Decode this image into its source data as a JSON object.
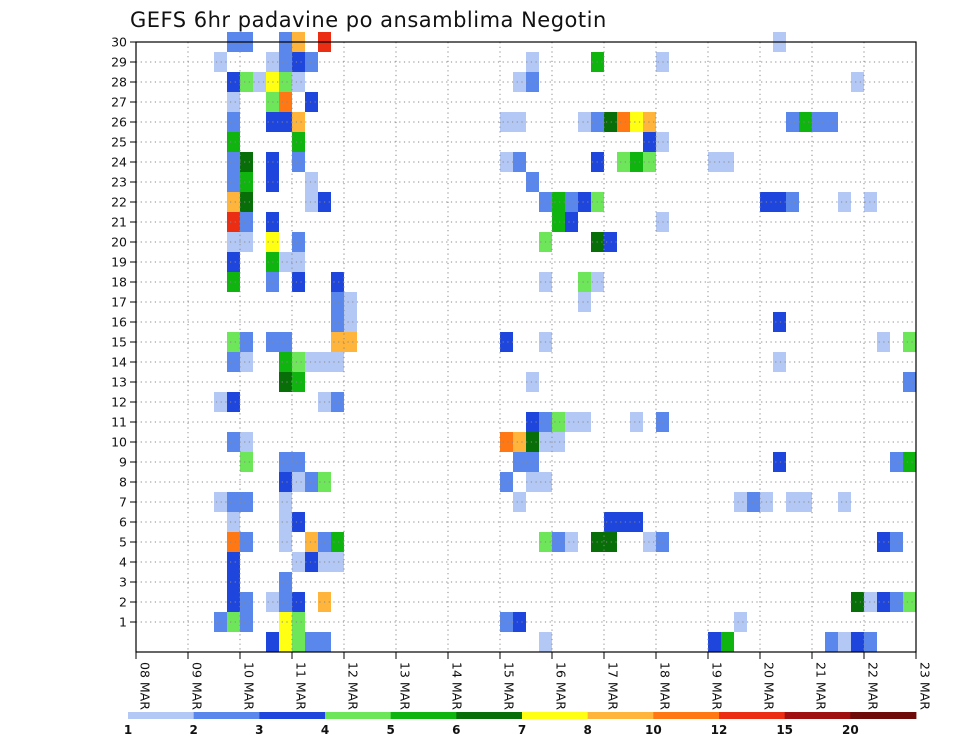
{
  "chart_data": {
    "type": "heatmap",
    "title": "GEFS 6hr padavine po ansamblima Negotin",
    "xlabel": "",
    "ylabel": "",
    "x_tick_labels": [
      "08 MAR",
      "09 MAR",
      "10 MAR",
      "11 MAR",
      "12 MAR",
      "13 MAR",
      "14 MAR",
      "15 MAR",
      "16 MAR",
      "17 MAR",
      "18 MAR",
      "19 MAR",
      "20 MAR",
      "21 MAR",
      "22 MAR",
      "23 MAR"
    ],
    "y_tick_labels": [
      "1",
      "2",
      "3",
      "4",
      "5",
      "6",
      "7",
      "8",
      "9",
      "10",
      "11",
      "12",
      "13",
      "14",
      "15",
      "16",
      "17",
      "18",
      "19",
      "20",
      "21",
      "22",
      "23",
      "24",
      "25",
      "26",
      "27",
      "28",
      "29",
      "30"
    ],
    "x_range_days": [
      0,
      15
    ],
    "y_range": [
      0,
      30
    ],
    "grid": true,
    "legend": {
      "placement": "bottom",
      "levels": [
        "1",
        "2",
        "3",
        "4",
        "5",
        "6",
        "7",
        "8",
        "10",
        "12",
        "15",
        "20"
      ],
      "colors": [
        "#b4c8f5",
        "#5a87eb",
        "#1e46dc",
        "#6ee65a",
        "#0fb40f",
        "#086e08",
        "#ffff14",
        "#ffb43c",
        "#ff7814",
        "#eb2d14",
        "#a00f0f",
        "#6e0a0a"
      ]
    },
    "cells_note": "each cell: [x_day_offset_from_08_MAR, ensemble_member, precipitation_class_index]",
    "cells": [
      [
        1.75,
        30,
        1
      ],
      [
        2,
        30,
        1
      ],
      [
        2.75,
        30,
        1
      ],
      [
        3,
        30,
        7
      ],
      [
        3.5,
        30,
        9
      ],
      [
        12.25,
        30,
        0
      ],
      [
        1.5,
        29,
        0
      ],
      [
        2.5,
        29,
        0
      ],
      [
        2.75,
        29,
        1
      ],
      [
        3,
        29,
        2
      ],
      [
        3.25,
        29,
        1
      ],
      [
        7.5,
        29,
        0
      ],
      [
        8.75,
        29,
        4
      ],
      [
        10,
        29,
        0
      ],
      [
        1.75,
        28,
        2
      ],
      [
        2,
        28,
        3
      ],
      [
        2.25,
        28,
        0
      ],
      [
        2.5,
        28,
        6
      ],
      [
        2.75,
        28,
        3
      ],
      [
        3,
        28,
        0
      ],
      [
        7.25,
        28,
        0
      ],
      [
        7.5,
        28,
        1
      ],
      [
        13.75,
        28,
        0
      ],
      [
        1.75,
        27,
        0
      ],
      [
        2.5,
        27,
        3
      ],
      [
        2.75,
        27,
        8
      ],
      [
        3.25,
        27,
        2
      ],
      [
        1.75,
        26,
        1
      ],
      [
        2.5,
        26,
        2
      ],
      [
        2.75,
        26,
        2
      ],
      [
        3,
        26,
        7
      ],
      [
        7,
        26,
        0
      ],
      [
        7.25,
        26,
        0
      ],
      [
        8.5,
        26,
        0
      ],
      [
        8.75,
        26,
        1
      ],
      [
        9,
        26,
        5
      ],
      [
        9.25,
        26,
        8
      ],
      [
        9.5,
        26,
        6
      ],
      [
        9.75,
        26,
        7
      ],
      [
        12.5,
        26,
        1
      ],
      [
        12.75,
        26,
        4
      ],
      [
        13,
        26,
        1
      ],
      [
        13.25,
        26,
        1
      ],
      [
        1.75,
        25,
        4
      ],
      [
        3,
        25,
        4
      ],
      [
        9.75,
        25,
        2
      ],
      [
        10,
        25,
        0
      ],
      [
        1.75,
        24,
        1
      ],
      [
        2,
        24,
        5
      ],
      [
        2.5,
        24,
        2
      ],
      [
        3,
        24,
        1
      ],
      [
        7,
        24,
        0
      ],
      [
        7.25,
        24,
        1
      ],
      [
        8.75,
        24,
        2
      ],
      [
        9.25,
        24,
        3
      ],
      [
        9.5,
        24,
        4
      ],
      [
        9.75,
        24,
        3
      ],
      [
        11,
        24,
        0
      ],
      [
        11.25,
        24,
        0
      ],
      [
        1.75,
        23,
        1
      ],
      [
        2,
        23,
        4
      ],
      [
        2.5,
        23,
        2
      ],
      [
        3.25,
        23,
        0
      ],
      [
        7.5,
        23,
        1
      ],
      [
        1.75,
        22,
        7
      ],
      [
        2,
        22,
        5
      ],
      [
        3.25,
        22,
        0
      ],
      [
        3.5,
        22,
        2
      ],
      [
        7.75,
        22,
        1
      ],
      [
        8,
        22,
        4
      ],
      [
        8.25,
        22,
        1
      ],
      [
        8.5,
        22,
        2
      ],
      [
        8.75,
        22,
        3
      ],
      [
        12,
        22,
        2
      ],
      [
        12.25,
        22,
        2
      ],
      [
        12.5,
        22,
        1
      ],
      [
        13.5,
        22,
        0
      ],
      [
        14,
        22,
        0
      ],
      [
        1.75,
        21,
        9
      ],
      [
        2,
        21,
        1
      ],
      [
        2.5,
        21,
        2
      ],
      [
        8,
        21,
        4
      ],
      [
        8.25,
        21,
        2
      ],
      [
        10,
        21,
        0
      ],
      [
        1.75,
        20,
        0
      ],
      [
        2,
        20,
        0
      ],
      [
        2.5,
        20,
        6
      ],
      [
        3,
        20,
        1
      ],
      [
        7.75,
        20,
        3
      ],
      [
        8.75,
        20,
        5
      ],
      [
        9,
        20,
        2
      ],
      [
        1.75,
        19,
        2
      ],
      [
        2.5,
        19,
        4
      ],
      [
        2.75,
        19,
        0
      ],
      [
        3,
        19,
        0
      ],
      [
        1.75,
        18,
        4
      ],
      [
        2.5,
        18,
        1
      ],
      [
        3,
        18,
        2
      ],
      [
        3.75,
        18,
        2
      ],
      [
        7.75,
        18,
        0
      ],
      [
        8.5,
        18,
        3
      ],
      [
        8.75,
        18,
        0
      ],
      [
        3.75,
        17,
        1
      ],
      [
        4,
        17,
        0
      ],
      [
        8.5,
        17,
        0
      ],
      [
        3.75,
        16,
        1
      ],
      [
        4,
        16,
        0
      ],
      [
        12.25,
        16,
        2
      ],
      [
        1.75,
        15,
        3
      ],
      [
        2,
        15,
        1
      ],
      [
        2.5,
        15,
        1
      ],
      [
        2.75,
        15,
        1
      ],
      [
        3.75,
        15,
        7
      ],
      [
        4,
        15,
        7
      ],
      [
        7,
        15,
        2
      ],
      [
        7.75,
        15,
        0
      ],
      [
        14.25,
        15,
        0
      ],
      [
        14.75,
        15,
        3
      ],
      [
        1.75,
        14,
        1
      ],
      [
        2,
        14,
        0
      ],
      [
        2.75,
        14,
        4
      ],
      [
        3,
        14,
        3
      ],
      [
        3.25,
        14,
        0
      ],
      [
        3.5,
        14,
        0
      ],
      [
        3.75,
        14,
        0
      ],
      [
        12.25,
        14,
        0
      ],
      [
        2.75,
        13,
        5
      ],
      [
        3,
        13,
        4
      ],
      [
        7.5,
        13,
        0
      ],
      [
        14.75,
        13,
        1
      ],
      [
        1.5,
        12,
        0
      ],
      [
        1.75,
        12,
        2
      ],
      [
        3.5,
        12,
        0
      ],
      [
        3.75,
        12,
        1
      ],
      [
        7.5,
        11,
        2
      ],
      [
        7.75,
        11,
        1
      ],
      [
        8,
        11,
        3
      ],
      [
        8.25,
        11,
        0
      ],
      [
        8.5,
        11,
        0
      ],
      [
        9.5,
        11,
        0
      ],
      [
        10,
        11,
        1
      ],
      [
        1.75,
        10,
        1
      ],
      [
        2,
        10,
        0
      ],
      [
        7,
        10,
        8
      ],
      [
        7.25,
        10,
        7
      ],
      [
        7.5,
        10,
        5
      ],
      [
        7.75,
        10,
        0
      ],
      [
        8,
        10,
        0
      ],
      [
        2,
        9,
        3
      ],
      [
        2.75,
        9,
        1
      ],
      [
        3,
        9,
        1
      ],
      [
        7.25,
        9,
        1
      ],
      [
        7.5,
        9,
        1
      ],
      [
        12.25,
        9,
        2
      ],
      [
        14.5,
        9,
        1
      ],
      [
        14.75,
        9,
        4
      ],
      [
        2.75,
        8,
        2
      ],
      [
        3,
        8,
        0
      ],
      [
        3.25,
        8,
        1
      ],
      [
        3.5,
        8,
        3
      ],
      [
        7,
        8,
        1
      ],
      [
        7.5,
        8,
        0
      ],
      [
        7.75,
        8,
        0
      ],
      [
        1.5,
        7,
        0
      ],
      [
        1.75,
        7,
        1
      ],
      [
        2,
        7,
        1
      ],
      [
        2.75,
        7,
        0
      ],
      [
        7.25,
        7,
        0
      ],
      [
        11.5,
        7,
        0
      ],
      [
        11.75,
        7,
        1
      ],
      [
        12,
        7,
        0
      ],
      [
        12.5,
        7,
        0
      ],
      [
        12.75,
        7,
        0
      ],
      [
        13.5,
        7,
        0
      ],
      [
        1.75,
        6,
        0
      ],
      [
        2.75,
        6,
        0
      ],
      [
        3,
        6,
        2
      ],
      [
        9,
        6,
        2
      ],
      [
        9.25,
        6,
        2
      ],
      [
        9.5,
        6,
        2
      ],
      [
        1.75,
        5,
        8
      ],
      [
        2,
        5,
        1
      ],
      [
        2.75,
        5,
        0
      ],
      [
        3.25,
        5,
        7
      ],
      [
        3.5,
        5,
        1
      ],
      [
        3.75,
        5,
        4
      ],
      [
        7.75,
        5,
        3
      ],
      [
        8,
        5,
        1
      ],
      [
        8.25,
        5,
        0
      ],
      [
        8.75,
        5,
        5
      ],
      [
        9,
        5,
        5
      ],
      [
        9.75,
        5,
        0
      ],
      [
        10,
        5,
        1
      ],
      [
        14.25,
        5,
        2
      ],
      [
        14.5,
        5,
        1
      ],
      [
        1.75,
        4,
        2
      ],
      [
        3,
        4,
        0
      ],
      [
        3.25,
        4,
        2
      ],
      [
        3.5,
        4,
        0
      ],
      [
        3.75,
        4,
        0
      ],
      [
        1.75,
        3,
        2
      ],
      [
        2.75,
        3,
        1
      ],
      [
        1.75,
        2,
        2
      ],
      [
        2,
        2,
        1
      ],
      [
        2.5,
        2,
        0
      ],
      [
        2.75,
        2,
        1
      ],
      [
        3,
        2,
        2
      ],
      [
        3.5,
        2,
        7
      ],
      [
        13.75,
        2,
        5
      ],
      [
        14,
        2,
        0
      ],
      [
        14.25,
        2,
        2
      ],
      [
        14.5,
        2,
        1
      ],
      [
        14.75,
        2,
        3
      ],
      [
        1.5,
        1,
        1
      ],
      [
        1.75,
        1,
        3
      ],
      [
        2,
        1,
        1
      ],
      [
        2.75,
        1,
        6
      ],
      [
        3,
        1,
        3
      ],
      [
        7,
        1,
        1
      ],
      [
        7.25,
        1,
        2
      ],
      [
        11.5,
        1,
        0
      ],
      [
        2.5,
        0,
        2
      ],
      [
        2.75,
        0,
        6
      ],
      [
        3,
        0,
        3
      ],
      [
        3.25,
        0,
        1
      ],
      [
        3.5,
        0,
        1
      ],
      [
        7.75,
        0,
        0
      ],
      [
        11,
        0,
        2
      ],
      [
        11.25,
        0,
        4
      ],
      [
        13.25,
        0,
        1
      ],
      [
        13.5,
        0,
        0
      ],
      [
        13.75,
        0,
        2
      ],
      [
        14,
        0,
        1
      ]
    ]
  }
}
